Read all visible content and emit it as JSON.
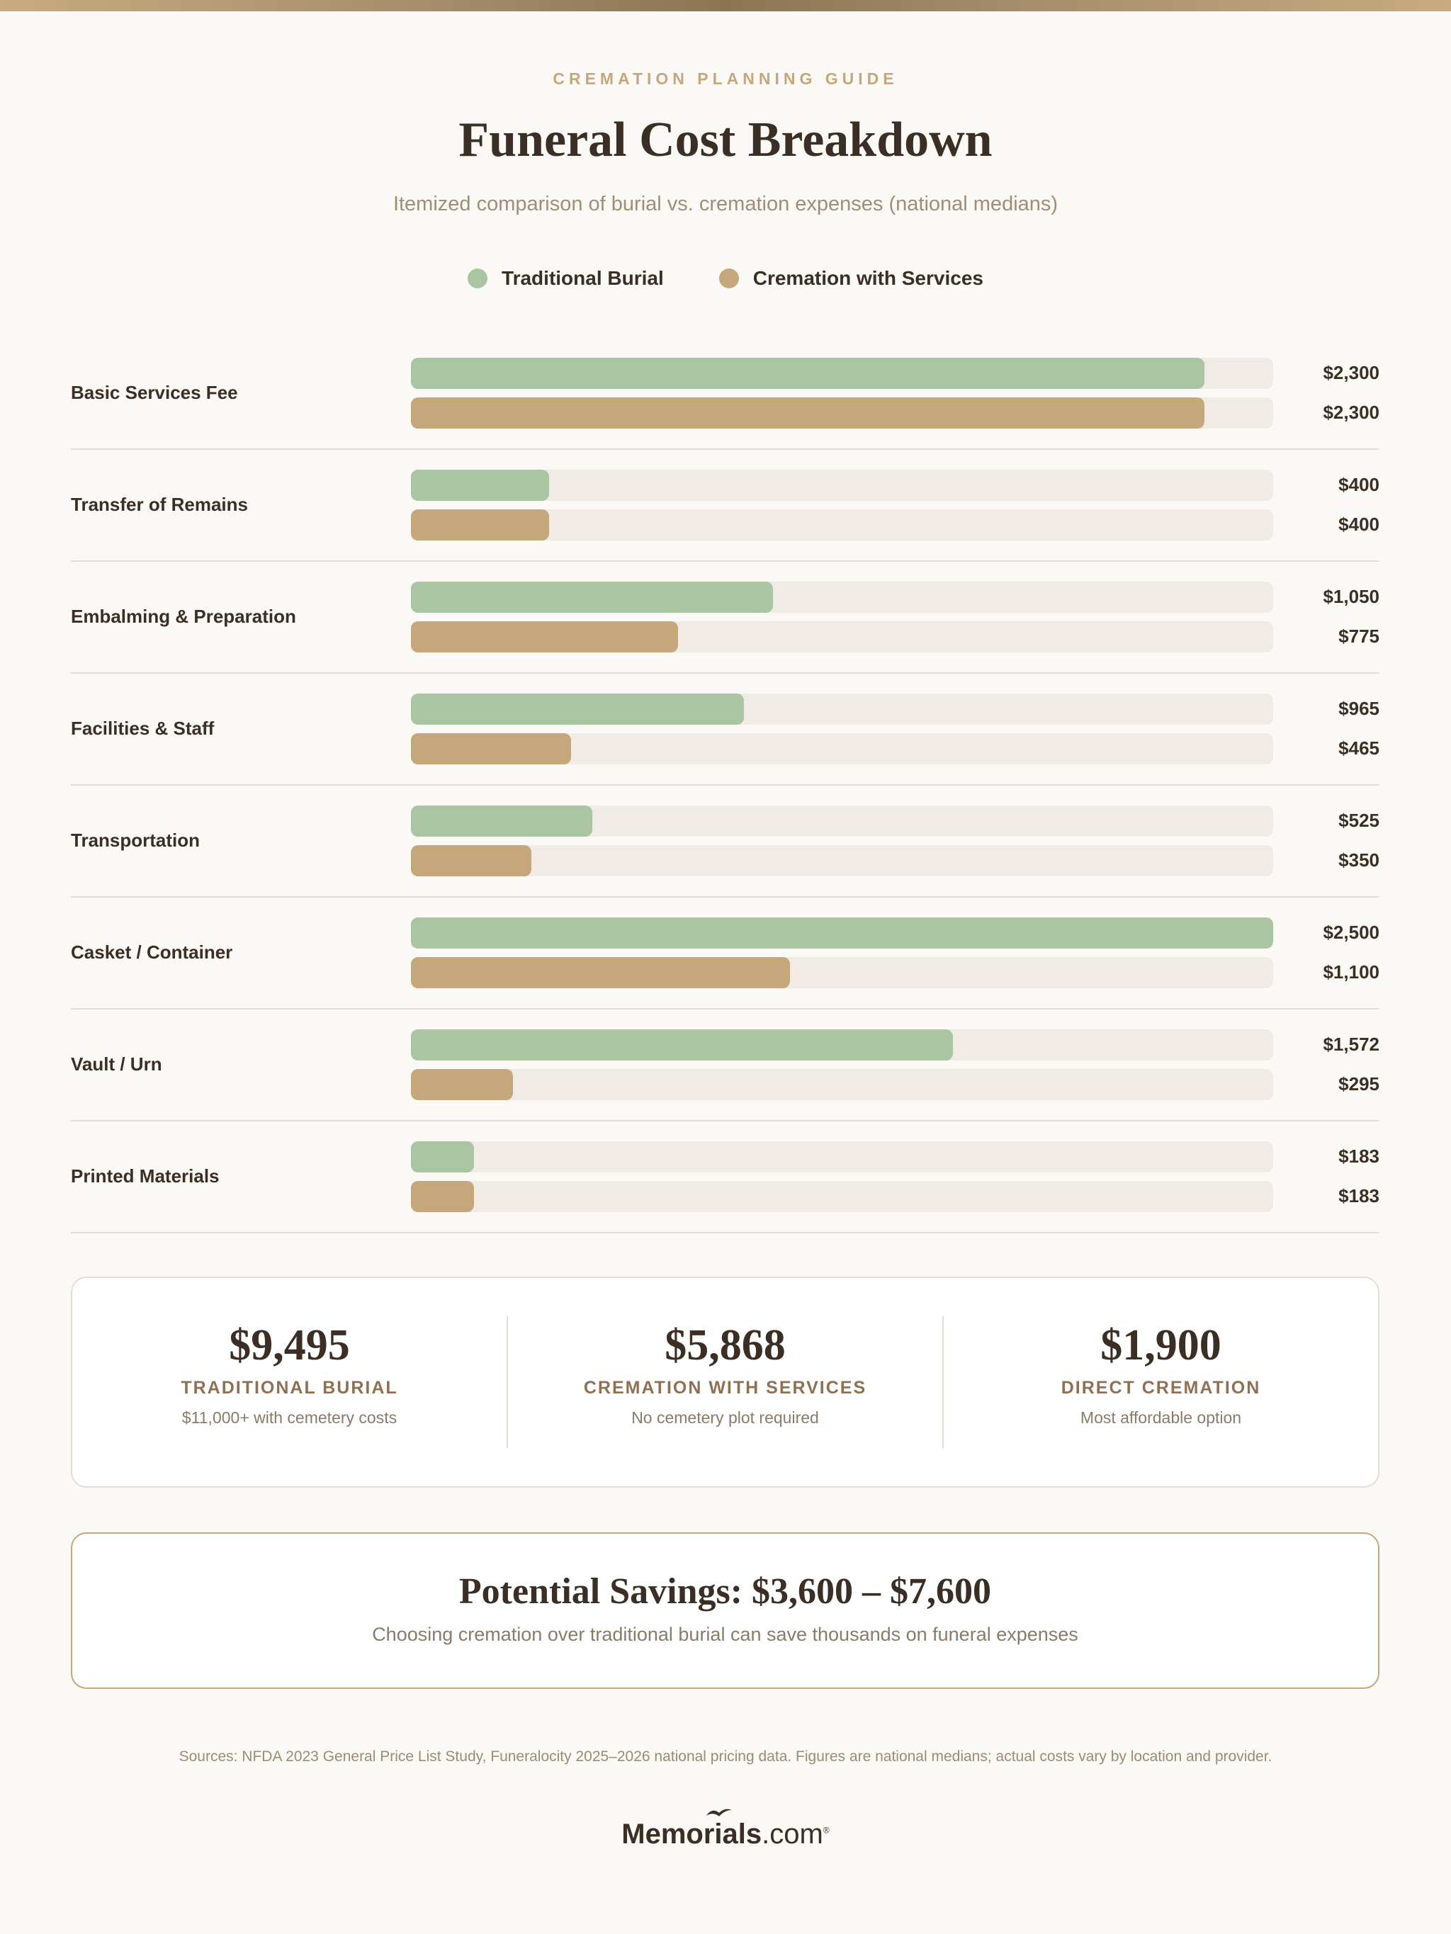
{
  "header": {
    "eyebrow": "CREMATION PLANNING GUIDE",
    "title": "Funeral Cost Breakdown",
    "subtitle": "Itemized comparison of burial vs. cremation expenses (national medians)"
  },
  "chart_data": {
    "type": "bar",
    "orientation": "horizontal",
    "title": "Funeral Cost Breakdown",
    "legend_position": "top",
    "xlim": [
      0,
      2500
    ],
    "categories": [
      "Basic Services Fee",
      "Transfer of Remains",
      "Embalming & Preparation",
      "Facilities & Staff",
      "Transportation",
      "Casket / Container",
      "Vault / Urn",
      "Printed Materials"
    ],
    "series": [
      {
        "name": "Traditional Burial",
        "color": "#a9c5a2",
        "values": [
          2300,
          400,
          1050,
          965,
          525,
          2500,
          1572,
          183
        ],
        "labels": [
          "$2,300",
          "$400",
          "$1,050",
          "$965",
          "$525",
          "$2,500",
          "$1,572",
          "$183"
        ]
      },
      {
        "name": "Cremation with Services",
        "color": "#c4a87c",
        "values": [
          2300,
          400,
          775,
          465,
          350,
          1100,
          295,
          183
        ],
        "labels": [
          "$2,300",
          "$400",
          "$775",
          "$465",
          "$350",
          "$1,100",
          "$295",
          "$183"
        ]
      }
    ]
  },
  "totals": [
    {
      "value": "$9,495",
      "label": "TRADITIONAL BURIAL",
      "note": "$11,000+ with cemetery costs"
    },
    {
      "value": "$5,868",
      "label": "CREMATION WITH SERVICES",
      "note": "No cemetery plot required"
    },
    {
      "value": "$1,900",
      "label": "DIRECT CREMATION",
      "note": "Most affordable option"
    }
  ],
  "savings": {
    "title": "Potential Savings: $3,600 – $7,600",
    "text": "Choosing cremation over traditional burial can save thousands on funeral expenses"
  },
  "sources": "Sources: NFDA 2023 General Price List Study, Funeralocity 2025–2026 national pricing data. Figures are national medians; actual costs vary by location and provider.",
  "logo": {
    "main": "Memorials",
    "suffix": ".com"
  }
}
